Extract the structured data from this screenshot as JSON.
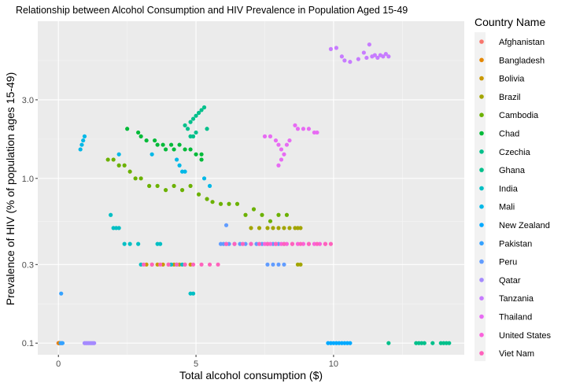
{
  "chart_data": {
    "type": "scatter",
    "title": "Relationship between Alcohol Consumption and HIV Prevalence in Population Aged 15-49",
    "xlabel": "Total alcohol consumption ($)",
    "ylabel": "Prevalence of HIV (% of population ages 15-49)",
    "xlim": [
      -0.75,
      14.75
    ],
    "ylim": [
      0.085,
      9.0
    ],
    "y_scale": "log10",
    "x_ticks": [
      0,
      5,
      10
    ],
    "x_tick_labels": [
      "0",
      "5",
      "10"
    ],
    "y_ticks": [
      0.1,
      0.3,
      1.0,
      3.0
    ],
    "y_tick_labels": [
      "0.1",
      "0.3",
      "1.0",
      "3.0"
    ],
    "grid": true,
    "legend_title": "Country Name",
    "legend_position": "right",
    "series": [
      {
        "name": "Afghanistan",
        "color": "#F8766D",
        "x": [
          0.0,
          0.02,
          0.05
        ],
        "y": [
          0.1,
          0.1,
          0.1
        ]
      },
      {
        "name": "Bangladesh",
        "color": "#E58700",
        "x": [
          0.01,
          0.03
        ],
        "y": [
          0.1,
          0.1
        ]
      },
      {
        "name": "Bolivia",
        "color": "#C99800",
        "x": [
          3.2,
          3.4,
          3.6,
          3.8,
          4.0,
          4.2,
          4.4,
          4.6,
          4.8
        ],
        "y": [
          0.3,
          0.3,
          0.3,
          0.3,
          0.3,
          0.3,
          0.3,
          0.3,
          0.3
        ]
      },
      {
        "name": "Brazil",
        "color": "#A3A500",
        "x": [
          7.0,
          7.3,
          7.6,
          7.8,
          8.0,
          8.2,
          8.4,
          8.6,
          8.7,
          8.7,
          8.8,
          8.8
        ],
        "y": [
          0.5,
          0.5,
          0.5,
          0.5,
          0.5,
          0.5,
          0.5,
          0.5,
          0.5,
          0.3,
          0.3,
          0.5
        ]
      },
      {
        "name": "Cambodia",
        "color": "#6BB100",
        "x": [
          1.8,
          2.0,
          2.2,
          2.4,
          2.6,
          2.8,
          3.0,
          3.3,
          3.6,
          3.9,
          4.2,
          4.5,
          4.8,
          5.1,
          5.4,
          5.6,
          5.9,
          6.2,
          6.5,
          6.8,
          7.1,
          7.4,
          7.7,
          8.0,
          8.3
        ],
        "y": [
          1.3,
          1.3,
          1.2,
          1.2,
          1.1,
          1.0,
          1.0,
          0.9,
          0.9,
          0.85,
          0.9,
          0.85,
          0.9,
          0.8,
          0.75,
          0.72,
          0.7,
          0.7,
          0.7,
          0.6,
          0.65,
          0.6,
          0.55,
          0.6,
          0.6
        ]
      },
      {
        "name": "Chad",
        "color": "#00BA38",
        "x": [
          2.5,
          2.9,
          3.0,
          3.2,
          3.5,
          3.8,
          4.1,
          4.4,
          4.6,
          4.8,
          5.0,
          5.2,
          5.2,
          3.6,
          3.9,
          4.2
        ],
        "y": [
          2.0,
          1.9,
          1.8,
          1.7,
          1.7,
          1.6,
          1.6,
          1.6,
          1.5,
          1.5,
          1.4,
          1.4,
          1.3,
          1.6,
          1.5,
          1.5
        ]
      },
      {
        "name": "Czechia",
        "color": "#00C08B",
        "x": [
          12.0,
          13.0,
          13.1,
          13.2,
          13.3,
          13.6,
          13.9,
          14.0,
          14.1,
          14.2
        ],
        "y": [
          0.1,
          0.1,
          0.1,
          0.1,
          0.1,
          0.1,
          0.1,
          0.1,
          0.1,
          0.1
        ]
      },
      {
        "name": "Ghana",
        "color": "#00C08B",
        "x": [
          4.6,
          4.7,
          4.8,
          4.9,
          5.0,
          5.1,
          5.2,
          5.3,
          5.4,
          4.8,
          4.9,
          5.0
        ],
        "y": [
          2.1,
          2.0,
          2.2,
          2.3,
          2.4,
          2.5,
          2.6,
          2.7,
          2.0,
          1.8,
          1.8,
          1.9
        ]
      },
      {
        "name": "India",
        "color": "#00BFC4",
        "x": [
          1.9,
          2.0,
          2.1,
          2.2,
          2.4,
          2.6,
          2.9,
          3.0,
          3.6,
          3.7,
          4.1,
          4.3,
          4.5,
          4.8,
          4.9
        ],
        "y": [
          0.6,
          0.5,
          0.5,
          0.5,
          0.4,
          0.4,
          0.4,
          0.3,
          0.4,
          0.4,
          0.3,
          0.3,
          0.3,
          0.2,
          0.2
        ]
      },
      {
        "name": "Mali",
        "color": "#00B8E7",
        "x": [
          0.8,
          0.85,
          0.9,
          0.95,
          2.2,
          3.4,
          4.3,
          4.4,
          4.5,
          4.6,
          5.3,
          5.5
        ],
        "y": [
          1.5,
          1.6,
          1.7,
          1.8,
          1.4,
          1.4,
          1.3,
          1.2,
          1.1,
          1.1,
          1.0,
          0.9
        ]
      },
      {
        "name": "New Zealand",
        "color": "#00A9FF",
        "x": [
          9.8,
          9.9,
          10.0,
          10.1,
          10.2,
          10.3,
          10.4,
          10.5,
          10.6
        ],
        "y": [
          0.1,
          0.1,
          0.1,
          0.1,
          0.1,
          0.1,
          0.1,
          0.1,
          0.1
        ]
      },
      {
        "name": "Pakistan",
        "color": "#35A2FF",
        "x": [
          0.1,
          0.08,
          0.12,
          0.15
        ],
        "y": [
          0.2,
          0.1,
          0.1,
          0.1
        ]
      },
      {
        "name": "Peru",
        "color": "#619CFF",
        "x": [
          5.9,
          6.0,
          6.1,
          6.2,
          6.4,
          6.6,
          6.8,
          7.0,
          7.2,
          7.4,
          7.6,
          7.8,
          8.0,
          8.2,
          7.6,
          7.8,
          8.0,
          8.2,
          6.1
        ],
        "y": [
          0.4,
          0.4,
          0.4,
          0.4,
          0.4,
          0.4,
          0.4,
          0.4,
          0.4,
          0.4,
          0.4,
          0.4,
          0.4,
          0.4,
          0.3,
          0.3,
          0.3,
          0.3,
          0.52
        ]
      },
      {
        "name": "Qatar",
        "color": "#A58AFF",
        "x": [
          0.95,
          1.0,
          1.05,
          1.1,
          1.15,
          1.2,
          1.25,
          1.3
        ],
        "y": [
          0.1,
          0.1,
          0.1,
          0.1,
          0.1,
          0.1,
          0.1,
          0.1
        ]
      },
      {
        "name": "Tanzania",
        "color": "#C77CFF",
        "x": [
          9.9,
          10.1,
          10.3,
          10.4,
          10.6,
          10.9,
          11.1,
          11.2,
          11.3,
          11.4,
          11.5,
          11.6,
          11.7,
          11.8,
          11.9,
          12.0
        ],
        "y": [
          6.1,
          6.2,
          5.5,
          5.2,
          5.1,
          5.3,
          5.8,
          5.4,
          6.5,
          5.5,
          5.6,
          5.4,
          5.6,
          5.5,
          5.7,
          5.5
        ]
      },
      {
        "name": "Thailand",
        "color": "#E76BF3",
        "x": [
          7.5,
          7.7,
          7.9,
          8.0,
          8.1,
          8.2,
          8.3,
          8.4,
          8.6,
          8.7,
          8.9,
          9.1,
          9.3,
          9.4,
          8.1,
          8.0
        ],
        "y": [
          1.8,
          1.8,
          1.7,
          1.6,
          1.5,
          1.4,
          1.6,
          1.7,
          2.1,
          2.0,
          2.0,
          2.0,
          1.9,
          1.9,
          1.3,
          1.2
        ]
      },
      {
        "name": "United States",
        "color": "#FA62DB",
        "x": [
          7.5,
          7.7,
          7.9,
          8.1,
          8.3,
          8.5,
          8.7,
          8.9,
          9.1,
          9.3,
          9.5,
          9.7
        ],
        "y": [
          0.4,
          0.4,
          0.4,
          0.4,
          0.4,
          0.4,
          0.4,
          0.4,
          0.4,
          0.4,
          0.4,
          0.4
        ]
      },
      {
        "name": "Viet Nam",
        "color": "#FF62BC",
        "x": [
          3.1,
          3.4,
          3.7,
          4.0,
          4.3,
          4.6,
          4.9,
          5.2,
          5.5,
          5.8,
          6.1,
          6.4,
          6.7,
          7.0,
          7.3,
          7.6,
          7.9,
          8.2,
          8.5,
          8.8,
          9.1,
          9.4,
          9.7,
          9.9
        ],
        "y": [
          0.3,
          0.3,
          0.3,
          0.3,
          0.3,
          0.3,
          0.3,
          0.3,
          0.3,
          0.3,
          0.4,
          0.4,
          0.4,
          0.4,
          0.4,
          0.4,
          0.4,
          0.4,
          0.4,
          0.4,
          0.4,
          0.4,
          0.4,
          0.4
        ]
      }
    ]
  }
}
